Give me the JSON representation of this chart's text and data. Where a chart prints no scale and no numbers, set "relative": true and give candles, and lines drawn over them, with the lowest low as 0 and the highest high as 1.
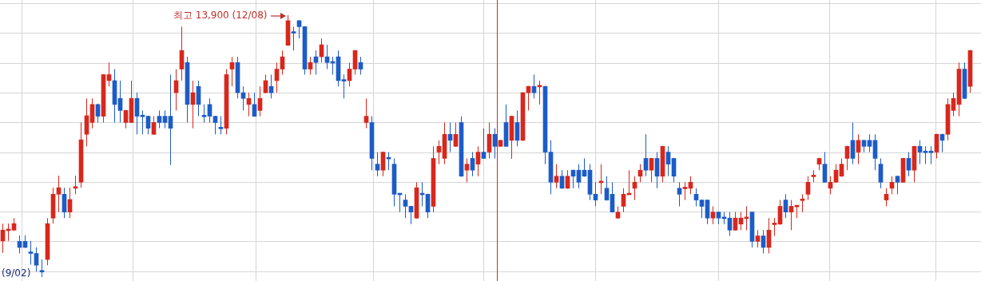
{
  "chart_data": {
    "type": "candlestick",
    "relative": true,
    "grid": true,
    "categories": [
      null,
      null,
      null,
      null,
      null,
      null,
      null,
      null,
      null,
      null,
      null,
      null,
      null,
      null,
      null,
      null,
      null,
      null,
      null,
      null,
      null,
      null,
      null,
      null,
      null,
      null,
      null,
      null,
      null,
      null,
      null,
      null,
      null,
      null,
      null,
      null,
      null,
      null,
      null,
      null,
      null,
      null,
      null,
      null,
      null,
      null,
      null,
      null,
      null,
      null,
      null,
      null,
      null,
      null,
      null,
      null,
      null,
      null,
      null,
      null,
      null,
      null,
      null,
      null,
      null,
      null,
      null,
      null,
      null,
      null,
      null,
      null,
      null,
      null,
      null,
      null,
      null,
      null,
      null,
      null,
      null,
      null,
      null,
      null,
      null,
      null,
      null,
      null,
      null,
      null,
      null,
      null,
      null,
      null,
      null,
      null,
      null,
      null,
      null,
      null,
      null,
      null,
      null,
      null,
      null,
      null,
      null,
      null,
      null,
      null,
      null,
      null,
      null,
      null,
      null,
      null,
      null,
      null,
      null,
      null,
      null,
      null,
      null,
      null,
      null,
      null,
      null,
      null,
      null,
      null,
      null,
      null,
      null,
      null,
      null,
      null,
      null,
      null,
      null,
      null,
      null,
      null,
      null,
      null,
      null,
      null,
      null,
      null,
      null,
      null,
      null,
      null,
      null,
      null,
      null,
      null,
      null,
      null,
      null,
      null,
      null,
      null,
      null,
      null,
      null,
      null,
      null,
      null,
      null,
      null,
      null,
      null,
      null,
      null
    ],
    "ohlc": [
      [
        0.138,
        0.204,
        0.092,
        0.179
      ],
      [
        0.177,
        0.204,
        0.138,
        0.181
      ],
      [
        0.179,
        0.225,
        0.176,
        0.204
      ],
      [
        0.136,
        0.159,
        0.09,
        0.113
      ],
      [
        0.136,
        0.159,
        0.111,
        0.113
      ],
      [
        0.095,
        0.138,
        0.047,
        0.09
      ],
      [
        0.09,
        0.113,
        0.021,
        0.045
      ],
      [
        0.023,
        0.067,
        0,
        0.019
      ],
      [
        0.067,
        0.225,
        0.045,
        0.204
      ],
      [
        0.225,
        0.341,
        0.204,
        0.316
      ],
      [
        0.316,
        0.387,
        0.248,
        0.341
      ],
      [
        0.316,
        0.341,
        0.225,
        0.248
      ],
      [
        0.248,
        0.341,
        0.225,
        0.296
      ],
      [
        0.339,
        0.387,
        0.316,
        0.343
      ],
      [
        0.362,
        0.59,
        0.341,
        0.524
      ],
      [
        0.545,
        0.682,
        0.499,
        0.616
      ],
      [
        0.59,
        0.682,
        0.568,
        0.659
      ],
      [
        0.659,
        0.662,
        0.59,
        0.614
      ],
      [
        0.614,
        0.775,
        0.59,
        0.773
      ],
      [
        0.75,
        0.819,
        0.728,
        0.773
      ],
      [
        0.75,
        0.794,
        0.59,
        0.659
      ],
      [
        0.682,
        0.75,
        0.59,
        0.636
      ],
      [
        0.59,
        0.638,
        0.568,
        0.636
      ],
      [
        0.59,
        0.75,
        0.588,
        0.682
      ],
      [
        0.682,
        0.704,
        0.545,
        0.614
      ],
      [
        0.616,
        0.636,
        0.545,
        0.612
      ],
      [
        0.614,
        0.616,
        0.545,
        0.568
      ],
      [
        0.545,
        0.614,
        0.543,
        0.59
      ],
      [
        0.614,
        0.636,
        0.568,
        0.59
      ],
      [
        0.614,
        0.636,
        0.568,
        0.59
      ],
      [
        0.614,
        0.773,
        0.428,
        0.568
      ],
      [
        0.704,
        0.794,
        0.636,
        0.75
      ],
      [
        0.794,
        0.956,
        0.75,
        0.865
      ],
      [
        0.819,
        0.841,
        0.59,
        0.659
      ],
      [
        0.659,
        0.75,
        0.568,
        0.704
      ],
      [
        0.728,
        0.75,
        0.614,
        0.659
      ],
      [
        0.616,
        0.659,
        0.59,
        0.612
      ],
      [
        0.659,
        0.682,
        0.59,
        0.614
      ],
      [
        0.614,
        0.616,
        0.545,
        0.59
      ],
      [
        0.57,
        0.614,
        0.545,
        0.566
      ],
      [
        0.568,
        0.794,
        0.545,
        0.773
      ],
      [
        0.794,
        0.841,
        0.728,
        0.819
      ],
      [
        0.819,
        0.841,
        0.682,
        0.704
      ],
      [
        0.704,
        0.728,
        0.636,
        0.682
      ],
      [
        0.659,
        0.704,
        0.614,
        0.682
      ],
      [
        0.659,
        0.704,
        0.612,
        0.614
      ],
      [
        0.636,
        0.728,
        0.614,
        0.682
      ],
      [
        0.704,
        0.773,
        0.702,
        0.75
      ],
      [
        0.728,
        0.773,
        0.682,
        0.704
      ],
      [
        0.75,
        0.819,
        0.704,
        0.794
      ],
      [
        0.794,
        0.865,
        0.773,
        0.841
      ],
      [
        0.885,
        1,
        0.883,
        0.979
      ],
      [
        0.935,
        0.956,
        0.865,
        0.931
      ],
      [
        0.979,
        0.981,
        0.911,
        0.956
      ],
      [
        0.956,
        0.958,
        0.773,
        0.794
      ],
      [
        0.794,
        0.841,
        0.773,
        0.819
      ],
      [
        0.841,
        0.865,
        0.773,
        0.819
      ],
      [
        0.841,
        0.911,
        0.819,
        0.887
      ],
      [
        0.841,
        0.887,
        0.794,
        0.819
      ],
      [
        0.821,
        0.841,
        0.773,
        0.817
      ],
      [
        0.841,
        0.865,
        0.728,
        0.75
      ],
      [
        0.752,
        0.773,
        0.682,
        0.748
      ],
      [
        0.75,
        0.819,
        0.728,
        0.794
      ],
      [
        0.794,
        0.867,
        0.773,
        0.865
      ],
      [
        0.819,
        0.841,
        0.773,
        0.794
      ],
      [
        0.59,
        0.682,
        0.568,
        0.614
      ],
      [
        0.59,
        0.614,
        0.408,
        0.453
      ],
      [
        0.431,
        0.477,
        0.385,
        0.408
      ],
      [
        0.408,
        0.479,
        0.385,
        0.477
      ],
      [
        0.455,
        0.477,
        0.408,
        0.451
      ],
      [
        0.431,
        0.453,
        0.27,
        0.316
      ],
      [
        0.318,
        0.318,
        0.248,
        0.314
      ],
      [
        0.294,
        0.316,
        0.225,
        0.27
      ],
      [
        0.27,
        0.272,
        0.202,
        0.248
      ],
      [
        0.225,
        0.362,
        0.223,
        0.341
      ],
      [
        0.318,
        0.362,
        0.27,
        0.314
      ],
      [
        0.316,
        0.318,
        0.225,
        0.248
      ],
      [
        0.27,
        0.499,
        0.248,
        0.453
      ],
      [
        0.477,
        0.522,
        0.431,
        0.499
      ],
      [
        0.453,
        0.59,
        0.431,
        0.545
      ],
      [
        0.545,
        0.59,
        0.477,
        0.522
      ],
      [
        0.499,
        0.59,
        0.497,
        0.545
      ],
      [
        0.59,
        0.614,
        0.383,
        0.385
      ],
      [
        0.408,
        0.453,
        0.362,
        0.431
      ],
      [
        0.453,
        0.477,
        0.385,
        0.408
      ],
      [
        0.431,
        0.499,
        0.385,
        0.477
      ],
      [
        0.477,
        0.568,
        0.451,
        0.453
      ],
      [
        0.477,
        0.59,
        0.453,
        0.545
      ],
      [
        0.545,
        0.568,
        0.453,
        0.499
      ],
      [
        0.499,
        0.524,
        0.497,
        0.522
      ],
      [
        0.59,
        0.659,
        0.497,
        0.499
      ],
      [
        0.522,
        0.616,
        0.451,
        0.614
      ],
      [
        0.59,
        0.636,
        0.499,
        0.522
      ],
      [
        0.522,
        0.706,
        0.52,
        0.704
      ],
      [
        0.704,
        0.73,
        0.636,
        0.728
      ],
      [
        0.728,
        0.773,
        0.682,
        0.704
      ],
      [
        0.726,
        0.75,
        0.659,
        0.73
      ],
      [
        0.728,
        0.73,
        0.431,
        0.477
      ],
      [
        0.477,
        0.522,
        0.316,
        0.362
      ],
      [
        0.362,
        0.431,
        0.339,
        0.385
      ],
      [
        0.385,
        0.408,
        0.337,
        0.339
      ],
      [
        0.339,
        0.408,
        0.337,
        0.385
      ],
      [
        0.408,
        0.41,
        0.339,
        0.385
      ],
      [
        0.408,
        0.431,
        0.339,
        0.362
      ],
      [
        0.408,
        0.453,
        0.383,
        0.385
      ],
      [
        0.408,
        0.431,
        0.294,
        0.316
      ],
      [
        0.316,
        0.362,
        0.27,
        0.294
      ],
      [
        0.36,
        0.431,
        0.316,
        0.364
      ],
      [
        0.339,
        0.385,
        0.292,
        0.294
      ],
      [
        0.316,
        0.362,
        0.246,
        0.248
      ],
      [
        0.225,
        0.27,
        0.223,
        0.248
      ],
      [
        0.27,
        0.339,
        0.248,
        0.316
      ],
      [
        0.314,
        0.408,
        0.314,
        0.318
      ],
      [
        0.339,
        0.385,
        0.294,
        0.362
      ],
      [
        0.385,
        0.431,
        0.362,
        0.408
      ],
      [
        0.453,
        0.545,
        0.385,
        0.408
      ],
      [
        0.408,
        0.455,
        0.362,
        0.453
      ],
      [
        0.453,
        0.477,
        0.339,
        0.385
      ],
      [
        0.385,
        0.501,
        0.362,
        0.499
      ],
      [
        0.477,
        0.499,
        0.385,
        0.431
      ],
      [
        0.453,
        0.455,
        0.362,
        0.385
      ],
      [
        0.339,
        0.362,
        0.27,
        0.316
      ],
      [
        0.337,
        0.362,
        0.294,
        0.341
      ],
      [
        0.339,
        0.385,
        0.316,
        0.362
      ],
      [
        0.316,
        0.339,
        0.27,
        0.294
      ],
      [
        0.294,
        0.296,
        0.225,
        0.27
      ],
      [
        0.294,
        0.296,
        0.202,
        0.225
      ],
      [
        0.225,
        0.27,
        0.202,
        0.248
      ],
      [
        0.248,
        0.25,
        0.202,
        0.225
      ],
      [
        0.227,
        0.248,
        0.202,
        0.223
      ],
      [
        0.225,
        0.248,
        0.157,
        0.179
      ],
      [
        0.179,
        0.248,
        0.177,
        0.225
      ],
      [
        0.202,
        0.248,
        0.179,
        0.225
      ],
      [
        0.223,
        0.27,
        0.179,
        0.227
      ],
      [
        0.248,
        0.25,
        0.113,
        0.136
      ],
      [
        0.136,
        0.179,
        0.113,
        0.157
      ],
      [
        0.157,
        0.179,
        0.09,
        0.113
      ],
      [
        0.113,
        0.225,
        0.09,
        0.179
      ],
      [
        0.2,
        0.225,
        0.157,
        0.204
      ],
      [
        0.202,
        0.294,
        0.2,
        0.27
      ],
      [
        0.294,
        0.316,
        0.225,
        0.248
      ],
      [
        0.248,
        0.294,
        0.179,
        0.27
      ],
      [
        0.268,
        0.272,
        0.225,
        0.272
      ],
      [
        0.292,
        0.316,
        0.248,
        0.296
      ],
      [
        0.316,
        0.385,
        0.294,
        0.362
      ],
      [
        0.383,
        0.408,
        0.362,
        0.387
      ],
      [
        0.431,
        0.455,
        0.408,
        0.453
      ],
      [
        0.431,
        0.477,
        0.36,
        0.362
      ],
      [
        0.339,
        0.385,
        0.316,
        0.362
      ],
      [
        0.362,
        0.431,
        0.36,
        0.408
      ],
      [
        0.385,
        0.453,
        0.383,
        0.431
      ],
      [
        0.453,
        0.501,
        0.408,
        0.499
      ],
      [
        0.522,
        0.59,
        0.431,
        0.453
      ],
      [
        0.477,
        0.545,
        0.431,
        0.522
      ],
      [
        0.522,
        0.524,
        0.477,
        0.499
      ],
      [
        0.522,
        0.545,
        0.477,
        0.499
      ],
      [
        0.522,
        0.545,
        0.408,
        0.453
      ],
      [
        0.431,
        0.453,
        0.339,
        0.362
      ],
      [
        0.294,
        0.339,
        0.27,
        0.316
      ],
      [
        0.339,
        0.385,
        0.316,
        0.362
      ],
      [
        0.385,
        0.387,
        0.316,
        0.362
      ],
      [
        0.362,
        0.455,
        0.36,
        0.453
      ],
      [
        0.453,
        0.477,
        0.385,
        0.408
      ],
      [
        0.408,
        0.501,
        0.362,
        0.499
      ],
      [
        0.499,
        0.522,
        0.431,
        0.477
      ],
      [
        0.479,
        0.499,
        0.431,
        0.475
      ],
      [
        0.479,
        0.499,
        0.431,
        0.475
      ],
      [
        0.477,
        0.547,
        0.453,
        0.545
      ],
      [
        0.545,
        0.547,
        0.477,
        0.522
      ],
      [
        0.545,
        0.682,
        0.522,
        0.659
      ],
      [
        0.636,
        0.704,
        0.614,
        0.682
      ],
      [
        0.659,
        0.819,
        0.614,
        0.794
      ],
      [
        0.794,
        0.819,
        0.68,
        0.682
      ],
      [
        0.728,
        0.867,
        0.704,
        0.865
      ]
    ],
    "colors": [
      "#d8271c",
      "#d8271c",
      "#d8271c",
      "#1c5cc6",
      "#1c5cc6",
      "#1c5cc6",
      "#1c5cc6",
      "#1c5cc6",
      "#d8271c",
      "#d8271c",
      "#d8271c",
      "#1c5cc6",
      "#d8271c",
      "#d8271c",
      "#d8271c",
      "#d8271c",
      "#d8271c",
      "#1c5cc6",
      "#d8271c",
      "#d8271c",
      "#1c5cc6",
      "#1c5cc6",
      "#d8271c",
      "#d8271c",
      "#1c5cc6",
      "#1c5cc6",
      "#1c5cc6",
      "#d8271c",
      "#1c5cc6",
      "#1c5cc6",
      "#1c5cc6",
      "#d8271c",
      "#d8271c",
      "#1c5cc6",
      "#d8271c",
      "#1c5cc6",
      "#1c5cc6",
      "#1c5cc6",
      "#1c5cc6",
      "#1c5cc6",
      "#d8271c",
      "#d8271c",
      "#1c5cc6",
      "#1c5cc6",
      "#d8271c",
      "#1c5cc6",
      "#d8271c",
      "#d8271c",
      "#1c5cc6",
      "#d8271c",
      "#d8271c",
      "#d8271c",
      "#1c5cc6",
      "#1c5cc6",
      "#1c5cc6",
      "#d8271c",
      "#1c5cc6",
      "#d8271c",
      "#1c5cc6",
      "#1c5cc6",
      "#1c5cc6",
      "#1c5cc6",
      "#d8271c",
      "#d8271c",
      "#1c5cc6",
      "#d8271c",
      "#1c5cc6",
      "#1c5cc6",
      "#d8271c",
      "#1c5cc6",
      "#1c5cc6",
      "#1c5cc6",
      "#1c5cc6",
      "#1c5cc6",
      "#d8271c",
      "#1c5cc6",
      "#1c5cc6",
      "#d8271c",
      "#d8271c",
      "#d8271c",
      "#1c5cc6",
      "#d8271c",
      "#1c5cc6",
      "#d8271c",
      "#1c5cc6",
      "#d8271c",
      "#1c5cc6",
      "#d8271c",
      "#1c5cc6",
      "#d8271c",
      "#1c5cc6",
      "#d8271c",
      "#1c5cc6",
      "#d8271c",
      "#d8271c",
      "#1c5cc6",
      "#d8271c",
      "#1c5cc6",
      "#1c5cc6",
      "#d8271c",
      "#1c5cc6",
      "#d8271c",
      "#1c5cc6",
      "#1c5cc6",
      "#1c5cc6",
      "#1c5cc6",
      "#1c5cc6",
      "#d8271c",
      "#1c5cc6",
      "#1c5cc6",
      "#d8271c",
      "#d8271c",
      "#d8271c",
      "#d8271c",
      "#d8271c",
      "#1c5cc6",
      "#d8271c",
      "#1c5cc6",
      "#d8271c",
      "#1c5cc6",
      "#1c5cc6",
      "#1c5cc6",
      "#d8271c",
      "#d8271c",
      "#1c5cc6",
      "#1c5cc6",
      "#1c5cc6",
      "#d8271c",
      "#1c5cc6",
      "#1c5cc6",
      "#1c5cc6",
      "#d8271c",
      "#d8271c",
      "#d8271c",
      "#1c5cc6",
      "#d8271c",
      "#1c5cc6",
      "#d8271c",
      "#d8271c",
      "#d8271c",
      "#1c5cc6",
      "#d8271c",
      "#d8271c",
      "#d8271c",
      "#d8271c",
      "#d8271c",
      "#d8271c",
      "#1c5cc6",
      "#d8271c",
      "#d8271c",
      "#d8271c",
      "#d8271c",
      "#1c5cc6",
      "#d8271c",
      "#1c5cc6",
      "#1c5cc6",
      "#1c5cc6",
      "#1c5cc6",
      "#d8271c",
      "#d8271c",
      "#1c5cc6",
      "#d8271c",
      "#1c5cc6",
      "#d8271c",
      "#1c5cc6",
      "#1c5cc6",
      "#1c5cc6",
      "#d8271c",
      "#1c5cc6",
      "#d8271c",
      "#d8271c",
      "#d8271c",
      "#1c5cc6",
      "#d8271c"
    ],
    "annotations": [
      "최고 13,900 (12/08)",
      "(9/02)"
    ]
  }
}
